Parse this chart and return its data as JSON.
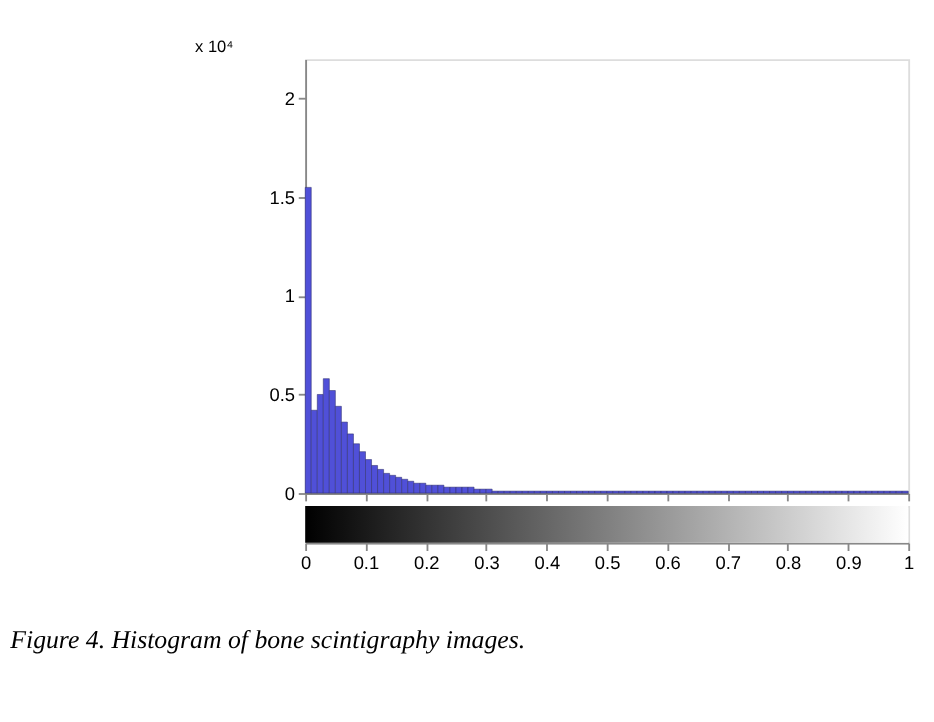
{
  "chart_data": {
    "type": "histogram",
    "bins": [
      0,
      0.01,
      0.02,
      0.03,
      0.04,
      0.05,
      0.06,
      0.07,
      0.08,
      0.09,
      0.1,
      0.11,
      0.12,
      0.13,
      0.14,
      0.15,
      0.16,
      0.17,
      0.18,
      0.19,
      0.2,
      0.21,
      0.22,
      0.23,
      0.24,
      0.25,
      0.26,
      0.27,
      0.28,
      0.29,
      0.3,
      0.31,
      0.32,
      0.33,
      0.34,
      0.35,
      0.36,
      0.37,
      0.38,
      0.39,
      0.4,
      0.41,
      0.42,
      0.43,
      0.44,
      0.45,
      0.46,
      0.47,
      0.48,
      0.49,
      0.5,
      0.51,
      0.52,
      0.53,
      0.54,
      0.55,
      0.56,
      0.57,
      0.58,
      0.59,
      0.6,
      0.61,
      0.62,
      0.63,
      0.64,
      0.65,
      0.66,
      0.67,
      0.68,
      0.69,
      0.7,
      0.71,
      0.72,
      0.73,
      0.74,
      0.75,
      0.76,
      0.77,
      0.78,
      0.79,
      0.8,
      0.81,
      0.82,
      0.83,
      0.84,
      0.85,
      0.86,
      0.87,
      0.88,
      0.89,
      0.9,
      0.91,
      0.92,
      0.93,
      0.94,
      0.95,
      0.96,
      0.97,
      0.98,
      0.99,
      1
    ],
    "values": [
      1.55,
      0.42,
      0.5,
      0.58,
      0.52,
      0.44,
      0.36,
      0.3,
      0.25,
      0.21,
      0.17,
      0.14,
      0.12,
      0.1,
      0.09,
      0.08,
      0.07,
      0.06,
      0.05,
      0.05,
      0.04,
      0.04,
      0.04,
      0.03,
      0.03,
      0.03,
      0.03,
      0.03,
      0.02,
      0.02,
      0.02,
      0.01,
      0.01,
      0.01,
      0.01,
      0.01,
      0.01,
      0.01,
      0.01,
      0.01,
      0.01,
      0.01,
      0.01,
      0.01,
      0.01,
      0.01,
      0.01,
      0.01,
      0.01,
      0.01,
      0.01,
      0.01,
      0.01,
      0.01,
      0.01,
      0.01,
      0.01,
      0.01,
      0.01,
      0.01,
      0.01,
      0.01,
      0.01,
      0.01,
      0.01,
      0.01,
      0.01,
      0.01,
      0.01,
      0.01,
      0.01,
      0.01,
      0.01,
      0.01,
      0.01,
      0.01,
      0.01,
      0.01,
      0.01,
      0.01,
      0.01,
      0.01,
      0.01,
      0.01,
      0.01,
      0.01,
      0.01,
      0.01,
      0.01,
      0.01,
      0.01,
      0.01,
      0.01,
      0.01,
      0.01,
      0.01,
      0.01,
      0.01,
      0.01,
      0.01
    ],
    "color": "#5050d8",
    "xlim": [
      0,
      1
    ],
    "xticks": [
      0,
      0.1,
      0.2,
      0.3,
      0.4,
      0.5,
      0.6,
      0.7,
      0.8,
      0.9,
      1
    ],
    "ylim": [
      0,
      2.2
    ],
    "yticks": [
      0,
      0.5,
      1,
      1.5,
      2
    ],
    "grid": false,
    "annotations": [
      "x 10⁴",
      "Figure 4. Histogram of bone scintigraphy images."
    ]
  }
}
